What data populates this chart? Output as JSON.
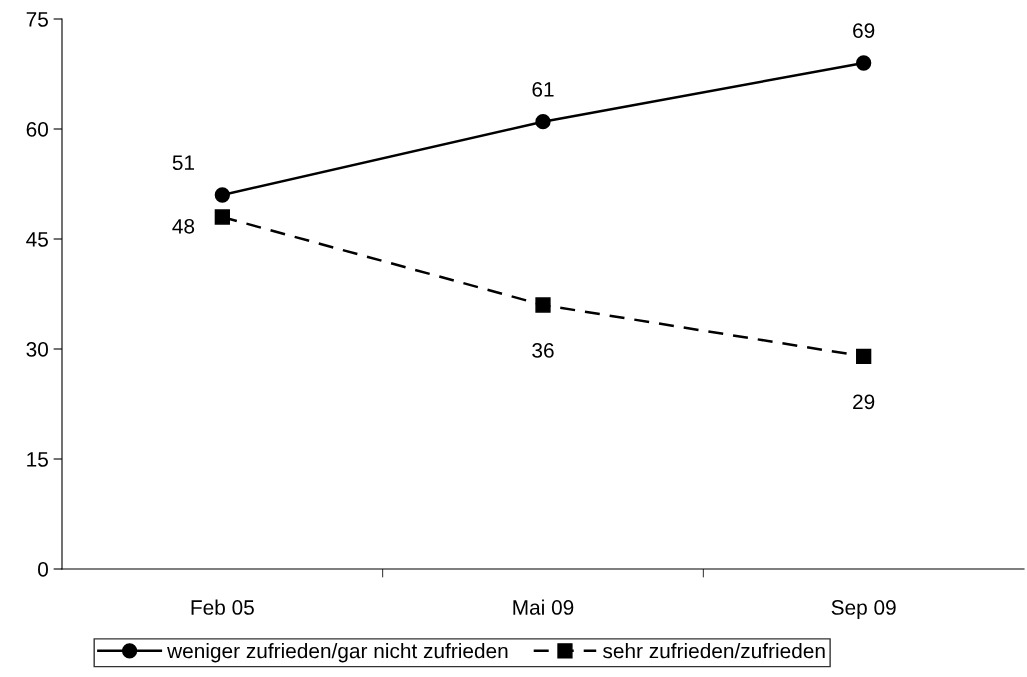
{
  "chart_data": {
    "type": "line",
    "categories": [
      "Feb 05",
      "Mai 09",
      "Sep 09"
    ],
    "series": [
      {
        "name": "weniger zufrieden/gar nicht zufrieden",
        "color": "#000000",
        "values": [
          51,
          61,
          69
        ],
        "marker": "circle",
        "line_style": "solid"
      },
      {
        "name": "sehr zufrieden/zufrieden",
        "color": "#000000",
        "values": [
          48,
          36,
          29
        ],
        "marker": "square",
        "line_style": "dashed"
      }
    ],
    "ylim": [
      0,
      75
    ],
    "yticks": [
      0,
      15,
      30,
      45,
      60,
      75
    ],
    "grid": false,
    "legend": "bottom",
    "data_labels": true
  }
}
